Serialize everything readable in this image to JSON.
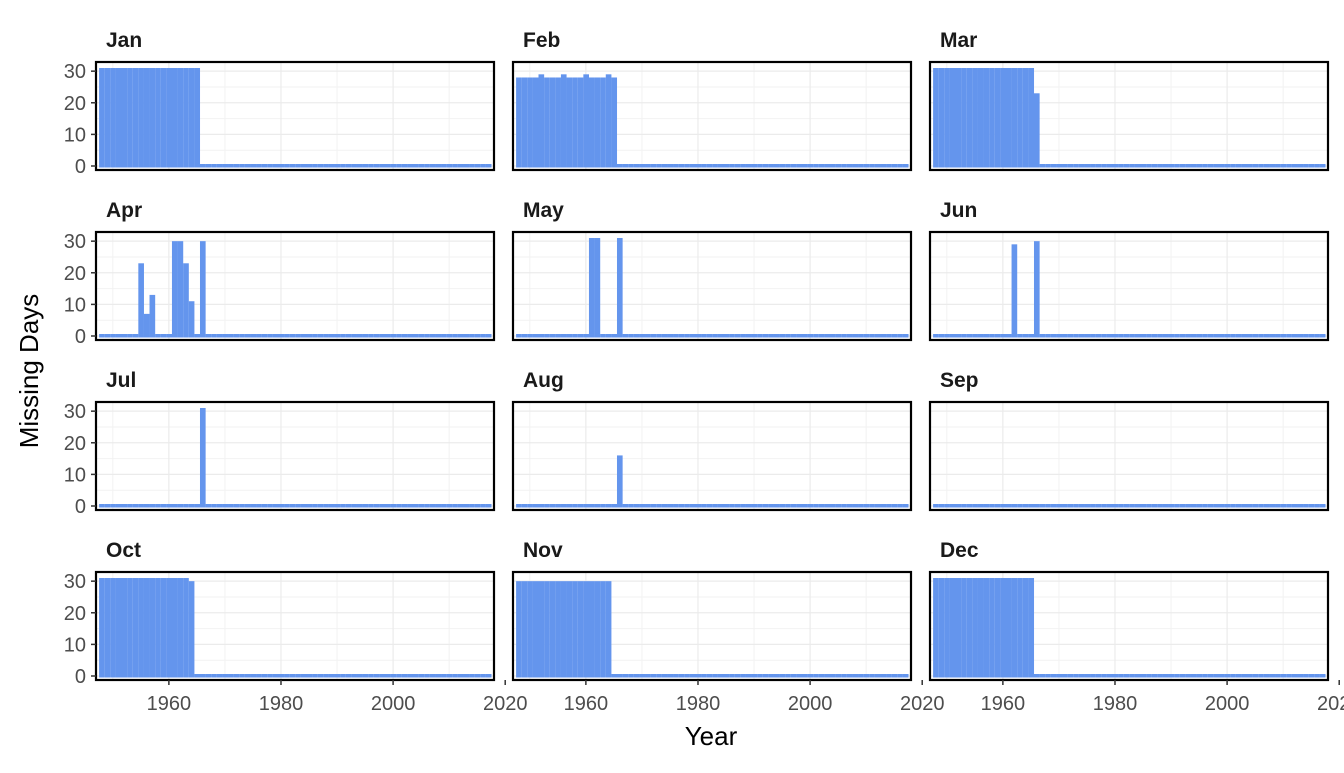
{
  "chart_data": {
    "type": "bar",
    "ylabel": "Missing Days",
    "xlabel": "Year",
    "xlim": [
      1947,
      2018
    ],
    "ylim": [
      0,
      31
    ],
    "x_ticks": [
      1960,
      1980,
      2000,
      2020
    ],
    "y_ticks": [
      0,
      10,
      20,
      30
    ],
    "grid": true,
    "bar_color": "#6495ED",
    "years": [
      1948,
      2017
    ],
    "panels": [
      {
        "name": "Jan",
        "nonzero": {
          "1948": 31,
          "1949": 31,
          "1950": 31,
          "1951": 31,
          "1952": 31,
          "1953": 31,
          "1954": 31,
          "1955": 31,
          "1956": 31,
          "1957": 31,
          "1958": 31,
          "1959": 31,
          "1960": 31,
          "1961": 31,
          "1962": 31,
          "1963": 31,
          "1964": 31,
          "1965": 31
        }
      },
      {
        "name": "Feb",
        "nonzero": {
          "1948": 28,
          "1949": 28,
          "1950": 28,
          "1951": 28,
          "1952": 29,
          "1953": 28,
          "1954": 28,
          "1955": 28,
          "1956": 29,
          "1957": 28,
          "1958": 28,
          "1959": 28,
          "1960": 29,
          "1961": 28,
          "1962": 28,
          "1963": 28,
          "1964": 29,
          "1965": 28
        }
      },
      {
        "name": "Mar",
        "nonzero": {
          "1948": 31,
          "1949": 31,
          "1950": 31,
          "1951": 31,
          "1952": 31,
          "1953": 31,
          "1954": 31,
          "1955": 31,
          "1956": 31,
          "1957": 31,
          "1958": 31,
          "1959": 31,
          "1960": 31,
          "1961": 31,
          "1962": 31,
          "1963": 31,
          "1964": 31,
          "1965": 31,
          "1966": 23
        }
      },
      {
        "name": "Apr",
        "nonzero": {
          "1955": 23,
          "1956": 7,
          "1957": 13,
          "1961": 30,
          "1962": 30,
          "1963": 23,
          "1964": 11,
          "1966": 30
        }
      },
      {
        "name": "May",
        "nonzero": {
          "1961": 31,
          "1962": 31,
          "1966": 31
        }
      },
      {
        "name": "Jun",
        "nonzero": {
          "1962": 29,
          "1966": 30
        }
      },
      {
        "name": "Jul",
        "nonzero": {
          "1966": 31
        }
      },
      {
        "name": "Aug",
        "nonzero": {
          "1966": 16
        }
      },
      {
        "name": "Sep",
        "nonzero": {}
      },
      {
        "name": "Oct",
        "nonzero": {
          "1948": 31,
          "1949": 31,
          "1950": 31,
          "1951": 31,
          "1952": 31,
          "1953": 31,
          "1954": 31,
          "1955": 31,
          "1956": 31,
          "1957": 31,
          "1958": 31,
          "1959": 31,
          "1960": 31,
          "1961": 31,
          "1962": 31,
          "1963": 31,
          "1964": 30
        }
      },
      {
        "name": "Nov",
        "nonzero": {
          "1948": 30,
          "1949": 30,
          "1950": 30,
          "1951": 30,
          "1952": 30,
          "1953": 30,
          "1954": 30,
          "1955": 30,
          "1956": 30,
          "1957": 30,
          "1958": 30,
          "1959": 30,
          "1960": 30,
          "1961": 30,
          "1962": 30,
          "1963": 30,
          "1964": 30
        }
      },
      {
        "name": "Dec",
        "nonzero": {
          "1948": 31,
          "1949": 31,
          "1950": 31,
          "1951": 31,
          "1952": 31,
          "1953": 31,
          "1954": 31,
          "1955": 31,
          "1956": 31,
          "1957": 31,
          "1958": 31,
          "1959": 31,
          "1960": 31,
          "1961": 31,
          "1962": 31,
          "1963": 31,
          "1964": 31,
          "1965": 31
        }
      }
    ]
  }
}
